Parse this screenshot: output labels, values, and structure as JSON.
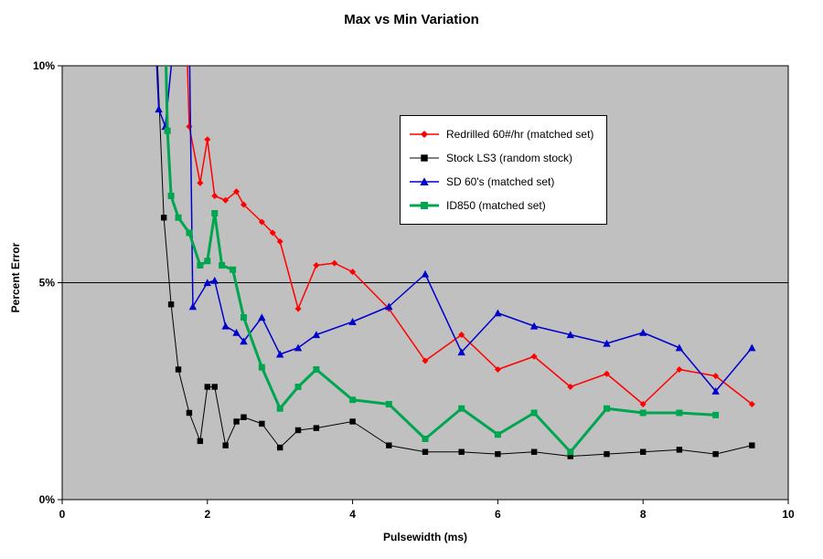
{
  "chart_data": {
    "type": "line",
    "title": "Max vs Min Variation",
    "xlabel": "Pulsewidth (ms)",
    "ylabel": "Percent Error",
    "xlim": [
      0,
      10
    ],
    "ylim": [
      0,
      10
    ],
    "xticks": {
      "values": [
        0,
        2,
        4,
        6,
        8,
        10
      ],
      "labels": [
        "0",
        "2",
        "4",
        "6",
        "8",
        "10"
      ]
    },
    "yticks": {
      "values": [
        0,
        5,
        10
      ],
      "labels": [
        "0%",
        "5%",
        "10%"
      ]
    },
    "plot_bg": "#c0c0c0",
    "gridline_y": 5,
    "legend_position": "top-center-inside",
    "series": [
      {
        "label": "Redrilled 60#/hr (matched set)",
        "color": "#ff0000",
        "marker": "diamond",
        "marker_size": 3.5,
        "line_width": 1.5,
        "x": [
          1.7,
          1.75,
          1.9,
          2.0,
          2.1,
          2.25,
          2.4,
          2.5,
          2.75,
          2.9,
          3.0,
          3.25,
          3.5,
          3.75,
          4.0,
          4.5,
          5.0,
          5.5,
          6.0,
          6.5,
          7.0,
          7.5,
          8.0,
          8.5,
          9.0,
          9.5
        ],
        "y": [
          11.5,
          8.6,
          7.3,
          8.3,
          7.0,
          6.9,
          7.1,
          6.8,
          6.4,
          6.15,
          5.95,
          4.4,
          5.4,
          5.45,
          5.25,
          4.4,
          3.2,
          3.8,
          3.0,
          3.3,
          2.6,
          2.9,
          2.2,
          3.0,
          2.85,
          2.2
        ]
      },
      {
        "label": "Stock LS3 (random stock)",
        "color": "#000000",
        "marker": "square",
        "marker_size": 3.2,
        "line_width": 1,
        "x": [
          1.3,
          1.4,
          1.5,
          1.6,
          1.75,
          1.9,
          2.0,
          2.1,
          2.25,
          2.4,
          2.5,
          2.75,
          3.0,
          3.25,
          3.5,
          4.0,
          4.5,
          5.0,
          5.5,
          6.0,
          6.5,
          7.0,
          7.5,
          8.0,
          8.5,
          9.0,
          9.5
        ],
        "y": [
          10.6,
          6.5,
          4.5,
          3.0,
          2.0,
          1.35,
          2.6,
          2.6,
          1.25,
          1.8,
          1.9,
          1.75,
          1.2,
          1.6,
          1.65,
          1.8,
          1.25,
          1.1,
          1.1,
          1.05,
          1.1,
          1.0,
          1.05,
          1.1,
          1.15,
          1.05,
          1.25
        ]
      },
      {
        "label": "SD 60's (matched set)",
        "color": "#0000cc",
        "marker": "triangle",
        "marker_size": 4.2,
        "line_width": 1.5,
        "x": [
          1.28,
          1.33,
          1.42,
          1.55,
          1.75,
          1.8,
          2.0,
          2.1,
          2.25,
          2.4,
          2.5,
          2.75,
          3.0,
          3.25,
          3.5,
          4.0,
          4.5,
          5.0,
          5.5,
          6.0,
          6.5,
          7.0,
          7.5,
          8.0,
          8.5,
          9.0,
          9.5
        ],
        "y": [
          10.8,
          9.0,
          8.6,
          10.8,
          10.8,
          4.45,
          5.0,
          5.05,
          4.0,
          3.85,
          3.65,
          4.2,
          3.35,
          3.5,
          3.8,
          4.1,
          4.45,
          5.2,
          3.4,
          4.3,
          4.0,
          3.8,
          3.6,
          3.85,
          3.5,
          2.5,
          3.5
        ]
      },
      {
        "label": "ID850 (matched set)",
        "color": "#00a550",
        "marker": "square",
        "marker_size": 3.5,
        "line_width": 3,
        "x": [
          1.42,
          1.45,
          1.5,
          1.6,
          1.75,
          1.9,
          2.0,
          2.1,
          2.2,
          2.35,
          2.5,
          2.75,
          3.0,
          3.25,
          3.5,
          4.0,
          4.5,
          5.0,
          5.5,
          6.0,
          6.5,
          7.0,
          7.5,
          8.0,
          8.5,
          9.0
        ],
        "y": [
          10.8,
          8.5,
          7.0,
          6.5,
          6.15,
          5.4,
          5.5,
          6.6,
          5.4,
          5.3,
          4.2,
          3.05,
          2.1,
          2.6,
          3.0,
          2.3,
          2.2,
          1.4,
          2.1,
          1.5,
          2.0,
          1.1,
          2.1,
          2.0,
          2.0,
          1.95
        ]
      }
    ]
  }
}
